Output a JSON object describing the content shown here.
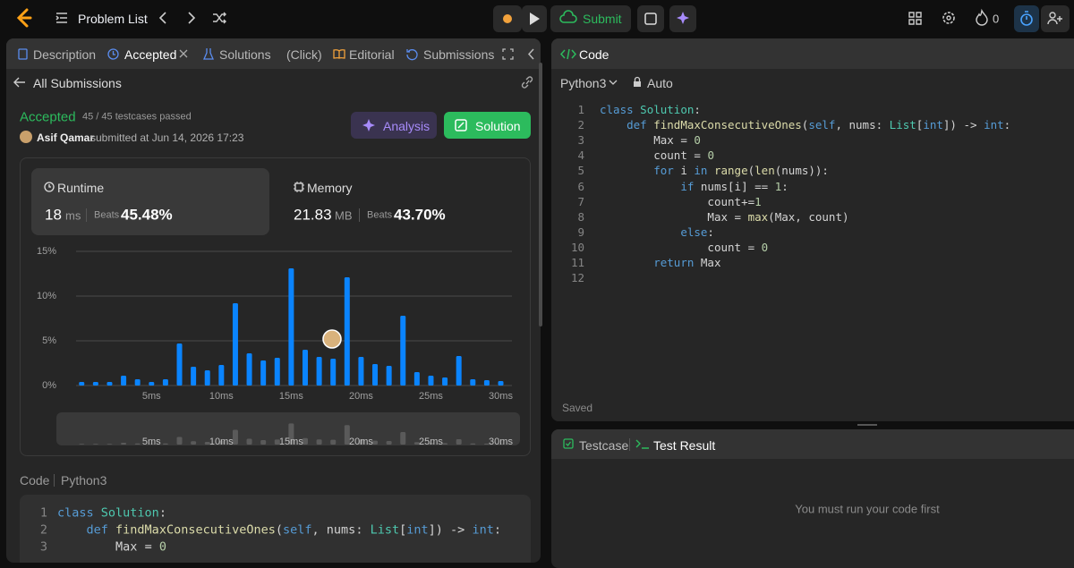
{
  "top_bar": {
    "problem_list": "Problem List",
    "submit": "Submit",
    "streak": "0"
  },
  "tabs": [
    "Description",
    "Accepted",
    "Solutions",
    "(Click)",
    "Editorial",
    "Submissions"
  ],
  "back_link": "All Submissions",
  "submission": {
    "status": "Accepted",
    "testcases": "45 / 45 testcases passed",
    "user": "Asif Qamar",
    "submitted": "submitted at Jun 14, 2026 17:23",
    "analysis_button": "Analysis",
    "solution_button": "Solution"
  },
  "runtime": {
    "label": "Runtime",
    "value": "18",
    "unit": "ms",
    "beats_label": "Beats",
    "beats": "45.48%"
  },
  "memory": {
    "label": "Memory",
    "value": "21.83",
    "unit": "MB",
    "beats_label": "Beats",
    "beats": "43.70%"
  },
  "chart_data": {
    "type": "bar",
    "x": [
      0,
      1,
      2,
      3,
      4,
      5,
      6,
      7,
      8,
      9,
      10,
      11,
      12,
      13,
      14,
      15,
      16,
      17,
      18,
      19,
      20,
      21,
      22,
      23,
      24,
      25,
      26,
      27,
      28,
      29,
      30
    ],
    "values": [
      0.4,
      0.4,
      0.4,
      1.1,
      0.7,
      0.4,
      0.7,
      4.7,
      2.1,
      1.7,
      2.3,
      9.2,
      3.6,
      2.8,
      3.1,
      13.1,
      4.0,
      3.2,
      3.0,
      12.1,
      3.2,
      2.4,
      2.2,
      7.8,
      1.5,
      1.1,
      0.9,
      3.3,
      0.7,
      0.6,
      0.5
    ],
    "color": "#0a84ff",
    "xlim": [
      -0.4,
      30.8
    ],
    "xticks": [
      {
        "value": 5,
        "label": "5ms"
      },
      {
        "value": 10,
        "label": "10ms"
      },
      {
        "value": 15,
        "label": "15ms"
      },
      {
        "value": 20,
        "label": "20ms"
      },
      {
        "value": 25,
        "label": "25ms"
      },
      {
        "value": 30,
        "label": "30ms"
      }
    ],
    "ylim": [
      0,
      15
    ],
    "yticks": [
      {
        "value": 0,
        "label": "0%"
      },
      {
        "value": 5,
        "label": "5%"
      },
      {
        "value": 10,
        "label": "10%"
      },
      {
        "value": 15,
        "label": "15%"
      }
    ],
    "grid": true
  },
  "code_preview": {
    "label": "Code",
    "language": "Python3",
    "lines": [
      {
        "number": 1,
        "text": "class Solution:"
      },
      {
        "number": 2,
        "text": "    def findMaxConsecutiveOnes(self, nums: List[int]) -> int:"
      },
      {
        "number": 3,
        "text": "        Max = 0"
      }
    ]
  },
  "editor": {
    "title": "Code",
    "language": "Python3",
    "mode": "Auto",
    "status": "Saved",
    "lines": [
      {
        "number": 1,
        "text": "class Solution:"
      },
      {
        "number": 2,
        "text": "    def findMaxConsecutiveOnes(self, nums: List[int]) -> int:"
      },
      {
        "number": 3,
        "text": "        Max = 0"
      },
      {
        "number": 4,
        "text": "        count = 0"
      },
      {
        "number": 5,
        "text": "        for i in range(len(nums)):"
      },
      {
        "number": 6,
        "text": "            if nums[i] == 1:"
      },
      {
        "number": 7,
        "text": "                count+=1"
      },
      {
        "number": 8,
        "text": "                Max = max(Max, count)"
      },
      {
        "number": 9,
        "text": "            else:"
      },
      {
        "number": 10,
        "text": "                count = 0"
      },
      {
        "number": 11,
        "text": "        return Max"
      },
      {
        "number": 12
      }
    ]
  },
  "console": {
    "tabs": [
      "Testcase",
      "Test Result"
    ],
    "message": "You must run your code first"
  }
}
